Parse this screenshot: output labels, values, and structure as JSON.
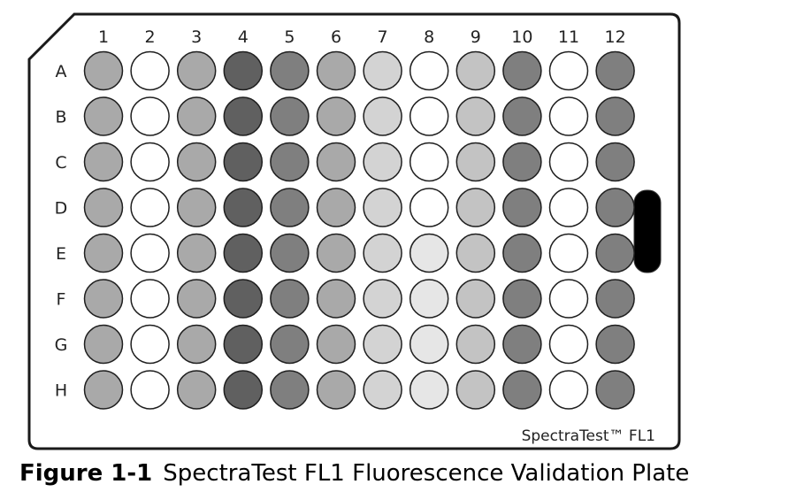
{
  "plate": {
    "name": "SpectraTest™ FL1",
    "columns": [
      "1",
      "2",
      "3",
      "4",
      "5",
      "6",
      "7",
      "8",
      "9",
      "10",
      "11",
      "12"
    ],
    "rows": [
      "A",
      "B",
      "C",
      "D",
      "E",
      "F",
      "G",
      "H"
    ],
    "colors": {
      "outline": "#1a1a1a",
      "handle": "#000000",
      "well_stroke": "#1f1f1f"
    },
    "column_fill": [
      "#a9a9a9",
      "#ffffff",
      "#a9a9a9",
      "#606060",
      "#7f7f7f",
      "#a9a9a9",
      "#d3d3d3",
      "#ffffff",
      "#c3c3c3",
      "#7f7f7f",
      "#ffffff",
      "#7f7f7f"
    ],
    "pale_wells": [
      {
        "row": "E",
        "col": "8",
        "fill": "#e6e6e6"
      },
      {
        "row": "F",
        "col": "8",
        "fill": "#e6e6e6"
      },
      {
        "row": "G",
        "col": "8",
        "fill": "#e6e6e6"
      },
      {
        "row": "H",
        "col": "8",
        "fill": "#e6e6e6"
      }
    ]
  },
  "caption": {
    "number": "Figure 1-1",
    "title": "SpectraTest FL1 Fluorescence Validation Plate"
  }
}
